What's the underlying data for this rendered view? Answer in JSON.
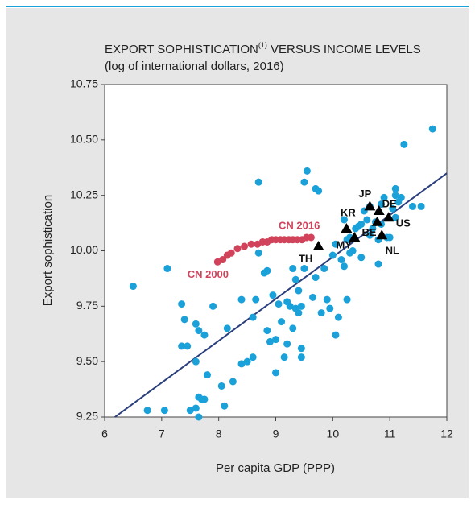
{
  "chart_data": {
    "type": "scatter",
    "title": "EXPORT SOPHISTICATION",
    "title_note": "(1)",
    "title_rest": " VERSUS INCOME LEVELS",
    "subtitle": "(log of international dollars, 2016)",
    "x_label": "Per capita GDP (PPP)",
    "y_label": "Export sophistication",
    "xlim": [
      6,
      12
    ],
    "ylim": [
      9.25,
      10.75
    ],
    "xticks": [
      6,
      7,
      8,
      9,
      10,
      11,
      12
    ],
    "yticks": [
      9.25,
      {
        "value": 9.5,
        "label": "9.50"
      },
      9.75,
      {
        "value": 10,
        "label": "10.00"
      },
      10.25,
      {
        "value": 10.5,
        "label": "10.50"
      },
      10.75
    ],
    "series": [
      {
        "color": "#1ba1d9",
        "marker": "circle",
        "x": [
          6.5,
          7.1,
          7.35,
          7.4,
          7.35,
          7.45,
          7.6,
          7.65,
          7.6,
          7.75,
          7.9,
          7.5,
          7.6,
          7.65,
          7.7,
          7.75,
          7.65,
          6.75,
          7.05,
          7.8,
          8.05,
          8.1,
          8.25,
          8.15,
          8.4,
          8.4,
          8.5,
          8.6,
          8.6,
          8.65,
          8.7,
          8.7,
          8.8,
          8.85,
          8.85,
          8.9,
          8.95,
          9.0,
          9.0,
          9.05,
          9.1,
          9.15,
          9.2,
          9.2,
          9.25,
          9.3,
          9.3,
          9.35,
          9.35,
          9.4,
          9.45,
          9.45,
          9.45,
          9.4,
          9.5,
          9.5,
          9.55,
          9.65,
          9.7,
          9.7,
          9.75,
          9.8,
          9.85,
          9.9,
          9.95,
          10.0,
          10.05,
          10.05,
          10.1,
          10.15,
          10.2,
          10.25,
          10.2,
          10.3,
          10.3,
          10.35,
          10.4,
          10.45,
          10.5,
          10.5,
          10.6,
          10.65,
          10.7,
          10.75,
          10.8,
          10.8,
          10.85,
          10.9,
          10.95,
          11.0,
          11.05,
          11.1,
          11.1,
          11.15,
          11.2,
          11.4,
          11.55,
          11.25,
          11.75,
          10.25,
          10.55,
          10.65,
          11.1,
          10.85
        ],
        "values": [
          9.84,
          9.92,
          9.76,
          9.69,
          9.57,
          9.57,
          9.67,
          9.64,
          9.5,
          9.62,
          9.75,
          9.28,
          9.29,
          9.34,
          9.33,
          9.33,
          9.25,
          9.28,
          9.28,
          9.44,
          9.39,
          9.3,
          9.41,
          9.65,
          9.78,
          9.49,
          9.5,
          9.52,
          9.7,
          9.78,
          9.99,
          10.31,
          9.9,
          9.91,
          9.64,
          9.59,
          9.8,
          9.45,
          9.6,
          9.76,
          9.68,
          9.52,
          9.77,
          9.58,
          9.75,
          9.65,
          9.92,
          9.87,
          9.74,
          9.72,
          9.52,
          9.56,
          9.75,
          9.82,
          9.92,
          10.31,
          10.36,
          9.79,
          9.88,
          10.28,
          10.27,
          9.72,
          9.92,
          9.78,
          9.74,
          9.98,
          9.62,
          10.03,
          9.7,
          9.96,
          9.93,
          9.78,
          10.14,
          10.06,
          9.99,
          10.0,
          10.1,
          10.11,
          10.12,
          9.97,
          10.14,
          10.07,
          10.1,
          10.13,
          10.05,
          9.94,
          10.12,
          10.24,
          10.06,
          10.06,
          10.19,
          10.25,
          10.28,
          10.22,
          10.24,
          10.2,
          10.2,
          10.48,
          10.55,
          10.05,
          10.18,
          10.2,
          10.15,
          10.21
        ]
      },
      {
        "color": "#d1435a",
        "marker": "circle",
        "x": [
          7.98,
          8.07,
          8.15,
          8.22,
          8.33,
          8.45,
          8.57,
          8.68,
          8.77,
          8.85,
          8.93,
          9.0,
          9.08,
          9.15,
          9.23,
          9.3,
          9.38,
          9.46,
          9.54,
          9.62
        ],
        "values": [
          9.95,
          9.96,
          9.98,
          9.99,
          10.01,
          10.02,
          10.03,
          10.03,
          10.04,
          10.04,
          10.05,
          10.05,
          10.05,
          10.05,
          10.05,
          10.05,
          10.05,
          10.05,
          10.06,
          10.06
        ]
      },
      {
        "color": "#000000",
        "marker": "triangle",
        "labels": [
          "JP",
          "DE",
          "KR",
          "US",
          "BE",
          "NL",
          "MY",
          "TH"
        ],
        "x": [
          10.65,
          10.81,
          10.24,
          10.98,
          10.78,
          10.86,
          10.38,
          9.75
        ],
        "values": [
          10.2,
          10.18,
          10.1,
          10.15,
          10.13,
          10.07,
          10.06,
          10.02
        ]
      }
    ],
    "trend": {
      "color": "#2a3f7c",
      "x": [
        6.18,
        12
      ],
      "values": [
        9.25,
        10.35
      ]
    },
    "annotations": [
      {
        "text": "CN 2016",
        "x": 9.05,
        "y": 10.11,
        "color": "#d1435a"
      },
      {
        "text": "CN 2000",
        "x": 7.45,
        "y": 9.89,
        "color": "#d1435a"
      }
    ]
  }
}
